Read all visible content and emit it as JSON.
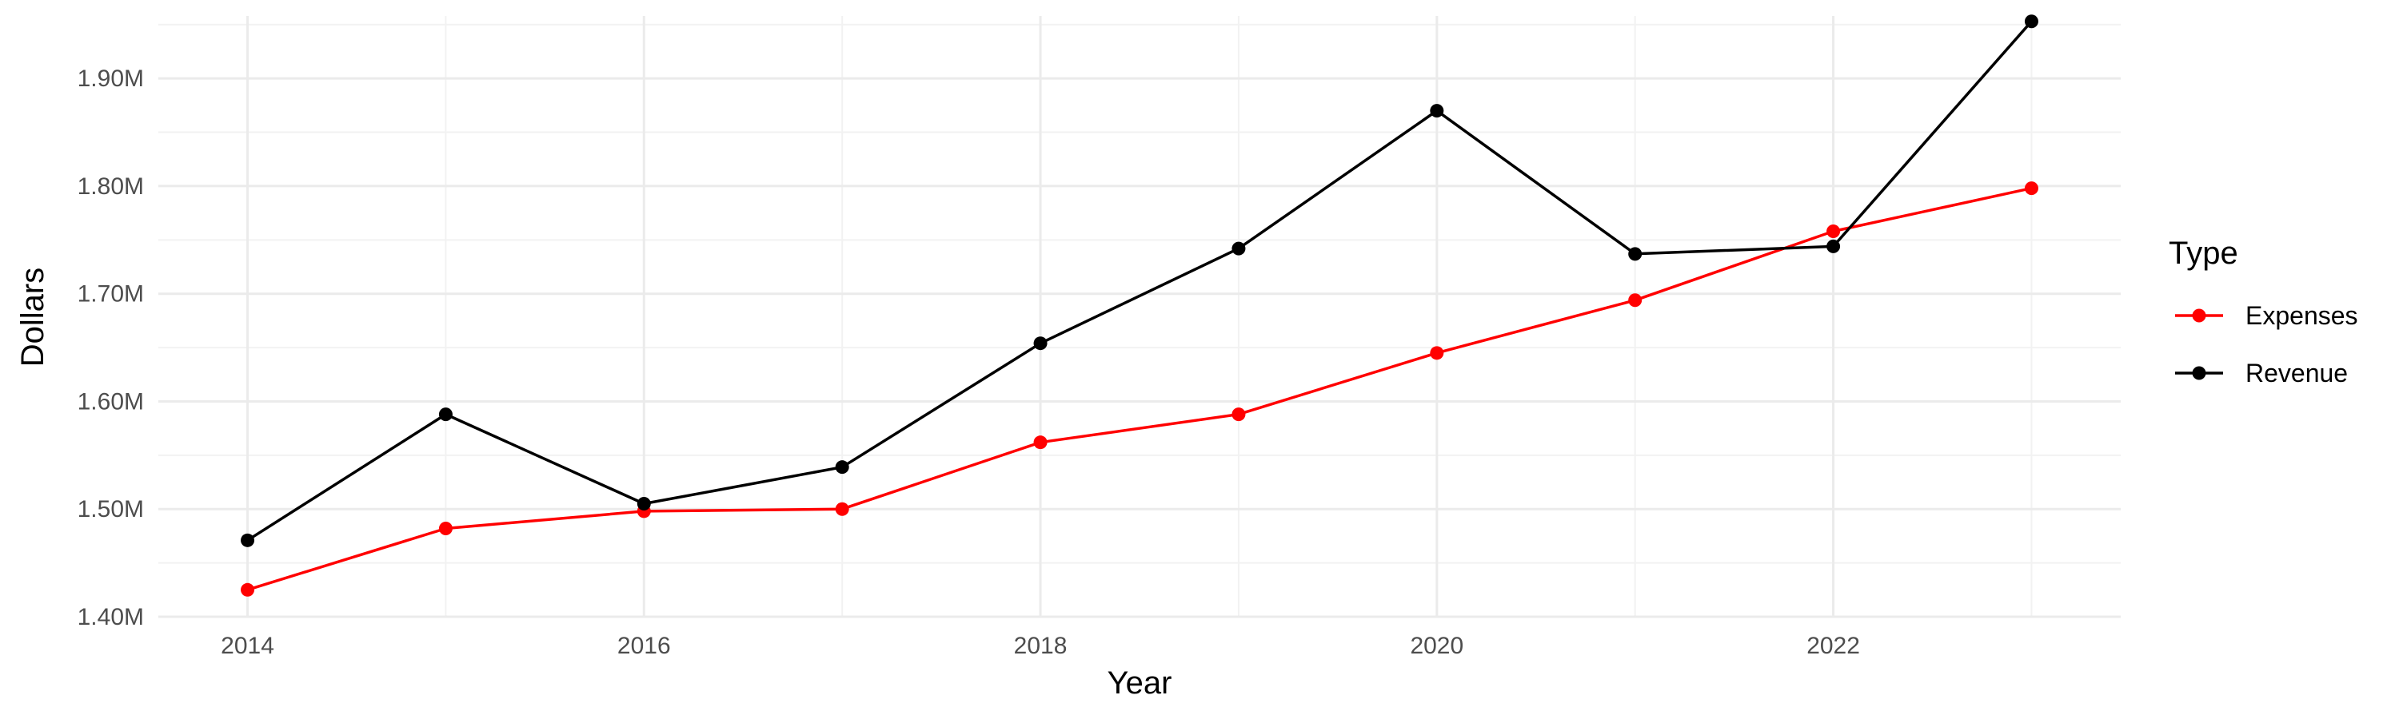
{
  "chart_data": {
    "type": "line",
    "xlabel": "Year",
    "ylabel": "Dollars",
    "x": [
      2014,
      2015,
      2016,
      2017,
      2018,
      2019,
      2020,
      2021,
      2022,
      2023
    ],
    "x_ticks": [
      "2014",
      "2016",
      "2018",
      "2020",
      "2022"
    ],
    "y_ticks": [
      "1.40M",
      "1.50M",
      "1.60M",
      "1.70M",
      "1.80M",
      "1.90M"
    ],
    "y_tick_values": [
      1400000,
      1500000,
      1600000,
      1700000,
      1800000,
      1900000
    ],
    "xlim": [
      2013.55,
      2023.45
    ],
    "ylim": [
      1400000,
      1958000
    ],
    "grid": true,
    "legend": {
      "title": "Type",
      "position": "right"
    },
    "series": [
      {
        "name": "Expenses",
        "color": "#ff0000",
        "values": [
          1425000,
          1482000,
          1498000,
          1500000,
          1562000,
          1588000,
          1645000,
          1694000,
          1758000,
          1798000
        ]
      },
      {
        "name": "Revenue",
        "color": "#000000",
        "values": [
          1471000,
          1588000,
          1505000,
          1539000,
          1654000,
          1742000,
          1870000,
          1737000,
          1744000,
          1953000
        ]
      }
    ]
  }
}
